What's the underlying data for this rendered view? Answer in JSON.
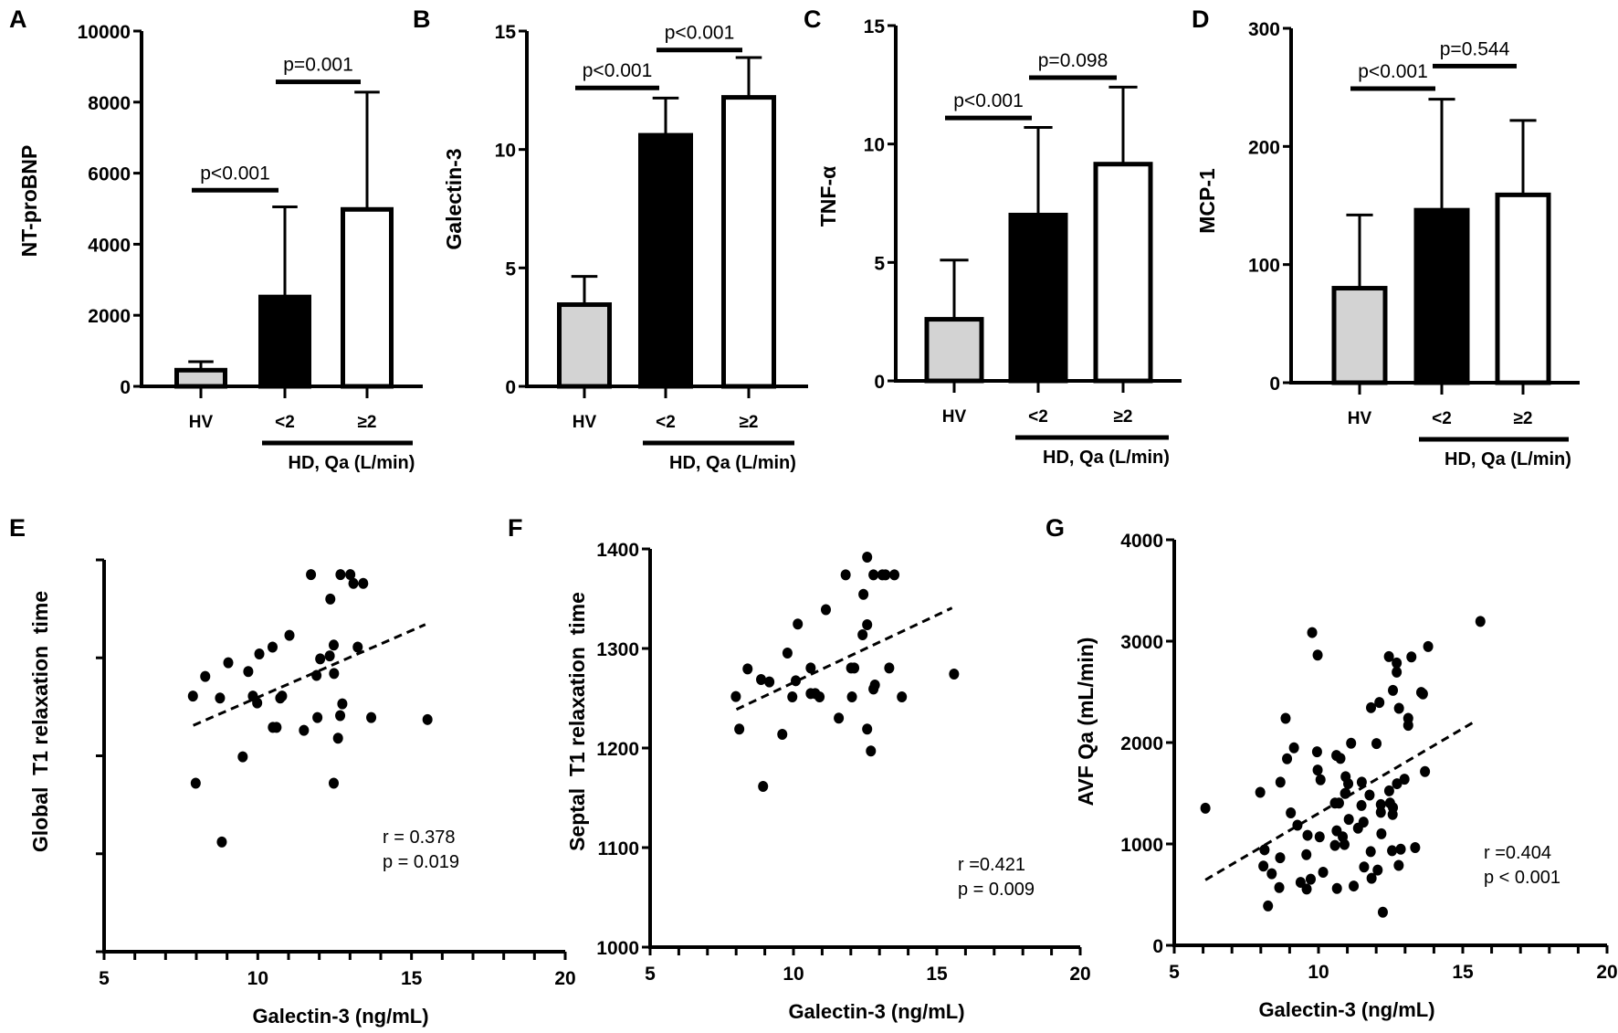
{
  "chart_data": [
    {
      "panel": "A",
      "type": "bar",
      "ylabel": "NT-proBNP",
      "ylim": [
        0,
        10000
      ],
      "yticks": [
        0,
        2000,
        4000,
        6000,
        8000,
        10000
      ],
      "categories": [
        "HV",
        "<2",
        "≥2"
      ],
      "values": [
        455,
        2515,
        4980
      ],
      "error_upper": [
        695,
        5050,
        8280
      ],
      "bar_colors": [
        "#d3d3d3",
        "#000000",
        "#ffffff"
      ],
      "group_label": "HD, Qa (L/min)",
      "comparisons": [
        {
          "from": 0,
          "to": 1,
          "y": 5520,
          "label": "p<0.001"
        },
        {
          "from": 1,
          "to": 2,
          "y": 8570,
          "label": "p=0.001"
        }
      ]
    },
    {
      "panel": "B",
      "type": "bar",
      "ylabel": "Galectin-3",
      "ylim": [
        0,
        15
      ],
      "yticks": [
        0,
        5,
        10,
        15
      ],
      "categories": [
        "HV",
        "<2",
        "≥2"
      ],
      "values": [
        3.45,
        10.6,
        12.2
      ],
      "error_upper": [
        4.64,
        12.17,
        13.88
      ],
      "bar_colors": [
        "#d3d3d3",
        "#000000",
        "#ffffff"
      ],
      "group_label": "HD, Qa (L/min)",
      "comparisons": [
        {
          "from": 0,
          "to": 1,
          "y": 12.6,
          "label": "p<0.001"
        },
        {
          "from": 1,
          "to": 2,
          "y": 14.2,
          "label": "p<0.001"
        }
      ]
    },
    {
      "panel": "C",
      "type": "bar",
      "ylabel": "TNF-α",
      "ylim": [
        0,
        15
      ],
      "yticks": [
        0,
        5,
        10,
        15
      ],
      "categories": [
        "HV",
        "<2",
        "≥2"
      ],
      "values": [
        2.6,
        7.0,
        9.15
      ],
      "error_upper": [
        5.1,
        10.7,
        12.4
      ],
      "bar_colors": [
        "#d3d3d3",
        "#000000",
        "#ffffff"
      ],
      "group_label": "HD, Qa (L/min)",
      "comparisons": [
        {
          "from": 0,
          "to": 1,
          "y": 11.1,
          "label": "p<0.001"
        },
        {
          "from": 1,
          "to": 2,
          "y": 12.8,
          "label": "p=0.098"
        }
      ]
    },
    {
      "panel": "D",
      "type": "bar",
      "ylabel": "MCP-1",
      "ylim": [
        0,
        300
      ],
      "yticks": [
        0,
        100,
        200,
        300
      ],
      "categories": [
        "HV",
        "<2",
        "≥2"
      ],
      "values": [
        80,
        146,
        159
      ],
      "error_upper": [
        142,
        240,
        222
      ],
      "bar_colors": [
        "#d3d3d3",
        "#000000",
        "#ffffff"
      ],
      "group_label": "HD, Qa (L/min)",
      "comparisons": [
        {
          "from": 0,
          "to": 1,
          "y": 249,
          "label": "p<0.001"
        },
        {
          "from": 1,
          "to": 2,
          "y": 268,
          "label": "p=0.544"
        }
      ]
    },
    {
      "panel": "E",
      "type": "scatter",
      "xlabel": "Galectin-3 (ng/mL)",
      "ylabel": "Global  T1 relaxation  time",
      "xlim": [
        5,
        20
      ],
      "xticks": [
        5,
        10,
        15,
        20
      ],
      "ylim": [
        0,
        4
      ],
      "yticks": [
        0,
        1,
        2,
        3,
        4
      ],
      "annotation": {
        "r": "r = 0.378",
        "p": "p = 0.019"
      },
      "trendline": {
        "x": [
          7.9,
          15.45
        ],
        "y": [
          2.31,
          3.34
        ]
      },
      "points": [
        [
          11.73,
          3.85
        ],
        [
          12.69,
          3.85
        ],
        [
          13.01,
          3.85
        ],
        [
          13.11,
          3.76
        ],
        [
          13.43,
          3.76
        ],
        [
          12.36,
          3.6
        ],
        [
          11.03,
          3.23
        ],
        [
          10.48,
          3.11
        ],
        [
          12.47,
          3.13
        ],
        [
          13.25,
          3.11
        ],
        [
          10.05,
          3.04
        ],
        [
          9.04,
          2.95
        ],
        [
          12.03,
          2.99
        ],
        [
          12.34,
          3.02
        ],
        [
          8.29,
          2.81
        ],
        [
          9.69,
          2.86
        ],
        [
          11.91,
          2.82
        ],
        [
          12.48,
          2.84
        ],
        [
          7.89,
          2.61
        ],
        [
          8.77,
          2.59
        ],
        [
          9.84,
          2.61
        ],
        [
          9.98,
          2.54
        ],
        [
          10.73,
          2.59
        ],
        [
          10.79,
          2.61
        ],
        [
          12.75,
          2.53
        ],
        [
          11.94,
          2.39
        ],
        [
          12.68,
          2.41
        ],
        [
          13.69,
          2.39
        ],
        [
          15.52,
          2.37
        ],
        [
          10.49,
          2.29
        ],
        [
          10.61,
          2.29
        ],
        [
          11.5,
          2.26
        ],
        [
          12.61,
          2.18
        ],
        [
          9.51,
          1.99
        ],
        [
          7.98,
          1.72
        ],
        [
          12.47,
          1.72
        ],
        [
          8.83,
          1.12
        ]
      ]
    },
    {
      "panel": "F",
      "type": "scatter",
      "xlabel": "Galectin-3 (ng/mL)",
      "ylabel": "Septal  T1 relaxation  time",
      "xlim": [
        5,
        20
      ],
      "xticks": [
        5,
        10,
        15,
        20
      ],
      "ylim": [
        1000,
        1400
      ],
      "yticks": [
        1000,
        1100,
        1200,
        1300,
        1400
      ],
      "annotation": {
        "r": "r =0.421",
        "p": "p = 0.009"
      },
      "trendline": {
        "x": [
          8.01,
          15.53
        ],
        "y": [
          1238.8,
          1340.7
        ]
      },
      "points": [
        [
          12.57,
          1391.7
        ],
        [
          11.82,
          1374
        ],
        [
          12.79,
          1374
        ],
        [
          13.1,
          1374
        ],
        [
          13.21,
          1374
        ],
        [
          13.52,
          1374
        ],
        [
          12.44,
          1354.4
        ],
        [
          11.13,
          1339
        ],
        [
          10.15,
          1324.5
        ],
        [
          12.57,
          1323.9
        ],
        [
          12.41,
          1313.8
        ],
        [
          9.79,
          1295.4
        ],
        [
          8.4,
          1279.5
        ],
        [
          10.6,
          1280.4
        ],
        [
          12.01,
          1280.4
        ],
        [
          12.12,
          1280.4
        ],
        [
          13.34,
          1280.4
        ],
        [
          15.6,
          1274.3
        ],
        [
          8.87,
          1268.8
        ],
        [
          9.16,
          1266.4
        ],
        [
          10.08,
          1267.6
        ],
        [
          12.84,
          1263.3
        ],
        [
          12.79,
          1259.3
        ],
        [
          7.99,
          1251.7
        ],
        [
          9.96,
          1251.4
        ],
        [
          10.6,
          1254.7
        ],
        [
          10.76,
          1254.7
        ],
        [
          10.91,
          1251.4
        ],
        [
          12.04,
          1251.4
        ],
        [
          13.78,
          1251.4
        ],
        [
          11.58,
          1230
        ],
        [
          8.11,
          1219
        ],
        [
          9.61,
          1213.8
        ],
        [
          12.57,
          1219
        ],
        [
          12.7,
          1197
        ],
        [
          8.94,
          1161.5
        ]
      ]
    },
    {
      "panel": "G",
      "type": "scatter",
      "xlabel": "Galectin-3 (ng/mL)",
      "ylabel": "AVF Qa (mL/min)",
      "xlim": [
        5,
        20
      ],
      "xticks": [
        5,
        10,
        15,
        20
      ],
      "ylim": [
        0,
        4000
      ],
      "yticks": [
        0,
        1000,
        2000,
        3000,
        4000
      ],
      "annotation": {
        "r": "r =0.404",
        "p": "p < 0.001"
      },
      "trendline": {
        "x": [
          6.08,
          15.47
        ],
        "y": [
          645,
          2217
        ]
      },
      "points": [
        [
          6.08,
          1352
        ],
        [
          7.98,
          1509
        ],
        [
          9.04,
          1306
        ],
        [
          9.27,
          1185
        ],
        [
          8.13,
          942
        ],
        [
          8.09,
          782
        ],
        [
          8.38,
          706
        ],
        [
          8.67,
          864
        ],
        [
          8.64,
          570
        ],
        [
          8.25,
          388
        ],
        [
          9.62,
          1085
        ],
        [
          10.04,
          1070
        ],
        [
          9.58,
          894
        ],
        [
          9.38,
          621
        ],
        [
          9.73,
          652
        ],
        [
          9.59,
          555
        ],
        [
          10.16,
          721
        ],
        [
          10.57,
          1403
        ],
        [
          10.71,
          1403
        ],
        [
          10.94,
          1500
        ],
        [
          11.05,
          1242
        ],
        [
          10.63,
          1130
        ],
        [
          10.84,
          1070
        ],
        [
          10.57,
          985
        ],
        [
          10.9,
          994
        ],
        [
          10.64,
          561
        ],
        [
          11.22,
          585
        ],
        [
          11.37,
          1155
        ],
        [
          11.56,
          1215
        ],
        [
          11.49,
          1379
        ],
        [
          11.77,
          1482
        ],
        [
          11.81,
          924
        ],
        [
          11.58,
          773
        ],
        [
          11.84,
          661
        ],
        [
          12.05,
          742
        ],
        [
          12.16,
          1388
        ],
        [
          12.16,
          1312
        ],
        [
          12.18,
          1100
        ],
        [
          12.23,
          327
        ],
        [
          12.45,
          1524
        ],
        [
          12.48,
          1403
        ],
        [
          12.58,
          1358
        ],
        [
          12.57,
          1291
        ],
        [
          12.55,
          933
        ],
        [
          12.85,
          948
        ],
        [
          12.78,
          788
        ],
        [
          13.35,
          964
        ],
        [
          8.68,
          1609
        ],
        [
          8.86,
          2239
        ],
        [
          9.15,
          1948
        ],
        [
          8.91,
          1840
        ],
        [
          9.78,
          3085
        ],
        [
          9.97,
          2863
        ],
        [
          9.95,
          1909
        ],
        [
          9.97,
          1729
        ],
        [
          10.07,
          1633
        ],
        [
          10.62,
          1873
        ],
        [
          10.76,
          1843
        ],
        [
          11.13,
          1993
        ],
        [
          10.94,
          1663
        ],
        [
          11.03,
          1594
        ],
        [
          10.92,
          1498
        ],
        [
          11.5,
          1609
        ],
        [
          11.82,
          2344
        ],
        [
          12.11,
          2395
        ],
        [
          12.01,
          1990
        ],
        [
          12.44,
          2848
        ],
        [
          12.71,
          2785
        ],
        [
          12.71,
          2695
        ],
        [
          13.22,
          2845
        ],
        [
          12.58,
          2515
        ],
        [
          12.79,
          2338
        ],
        [
          13.11,
          2239
        ],
        [
          13.11,
          2170
        ],
        [
          12.72,
          1594
        ],
        [
          12.98,
          1639
        ],
        [
          13.69,
          1714
        ],
        [
          13.56,
          2494
        ],
        [
          13.62,
          2480
        ],
        [
          13.8,
          2947
        ],
        [
          15.61,
          3195
        ]
      ]
    }
  ]
}
